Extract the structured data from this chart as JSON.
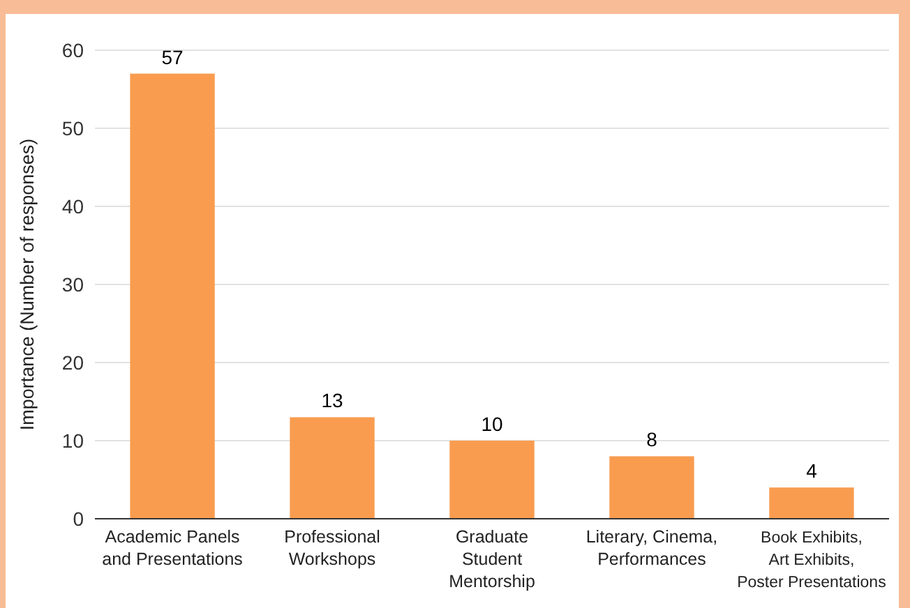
{
  "chart_data": {
    "type": "bar",
    "ylabel": "Importance (Number of responses)",
    "categories": [
      "Academic Panels\nand Presentations",
      "Professional\nWorkshops",
      "Graduate\nStudent\nMentorship",
      "Literary, Cinema,\nPerformances",
      "Book Exhibits,\nArt Exhibits,\nPoster Presentations"
    ],
    "values": [
      57,
      13,
      10,
      8,
      4
    ],
    "data_labels": true,
    "color": "#f99c50",
    "ylim": [
      0,
      60
    ],
    "yticks": [
      0,
      10,
      20,
      30,
      40,
      50,
      60
    ],
    "grid": "y"
  }
}
